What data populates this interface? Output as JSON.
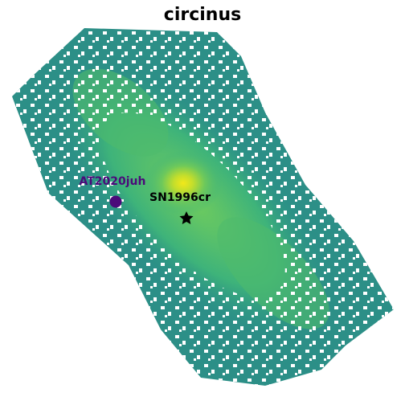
{
  "title": "circinus",
  "colors": {
    "low": "#2a8a8a",
    "mid": "#3eb37a",
    "high": "#8fd14f",
    "peak": "#e8e41a",
    "transient_marker": "#4b0a7a",
    "supernova_marker": "#000000"
  },
  "markers": [
    {
      "id": "at2020juh",
      "label": "AT2020juh",
      "symbol": "circle",
      "color": "#4b0a7a"
    },
    {
      "id": "sn1996cr",
      "label": "SN1996cr",
      "symbol": "star",
      "color": "#000000"
    }
  ]
}
